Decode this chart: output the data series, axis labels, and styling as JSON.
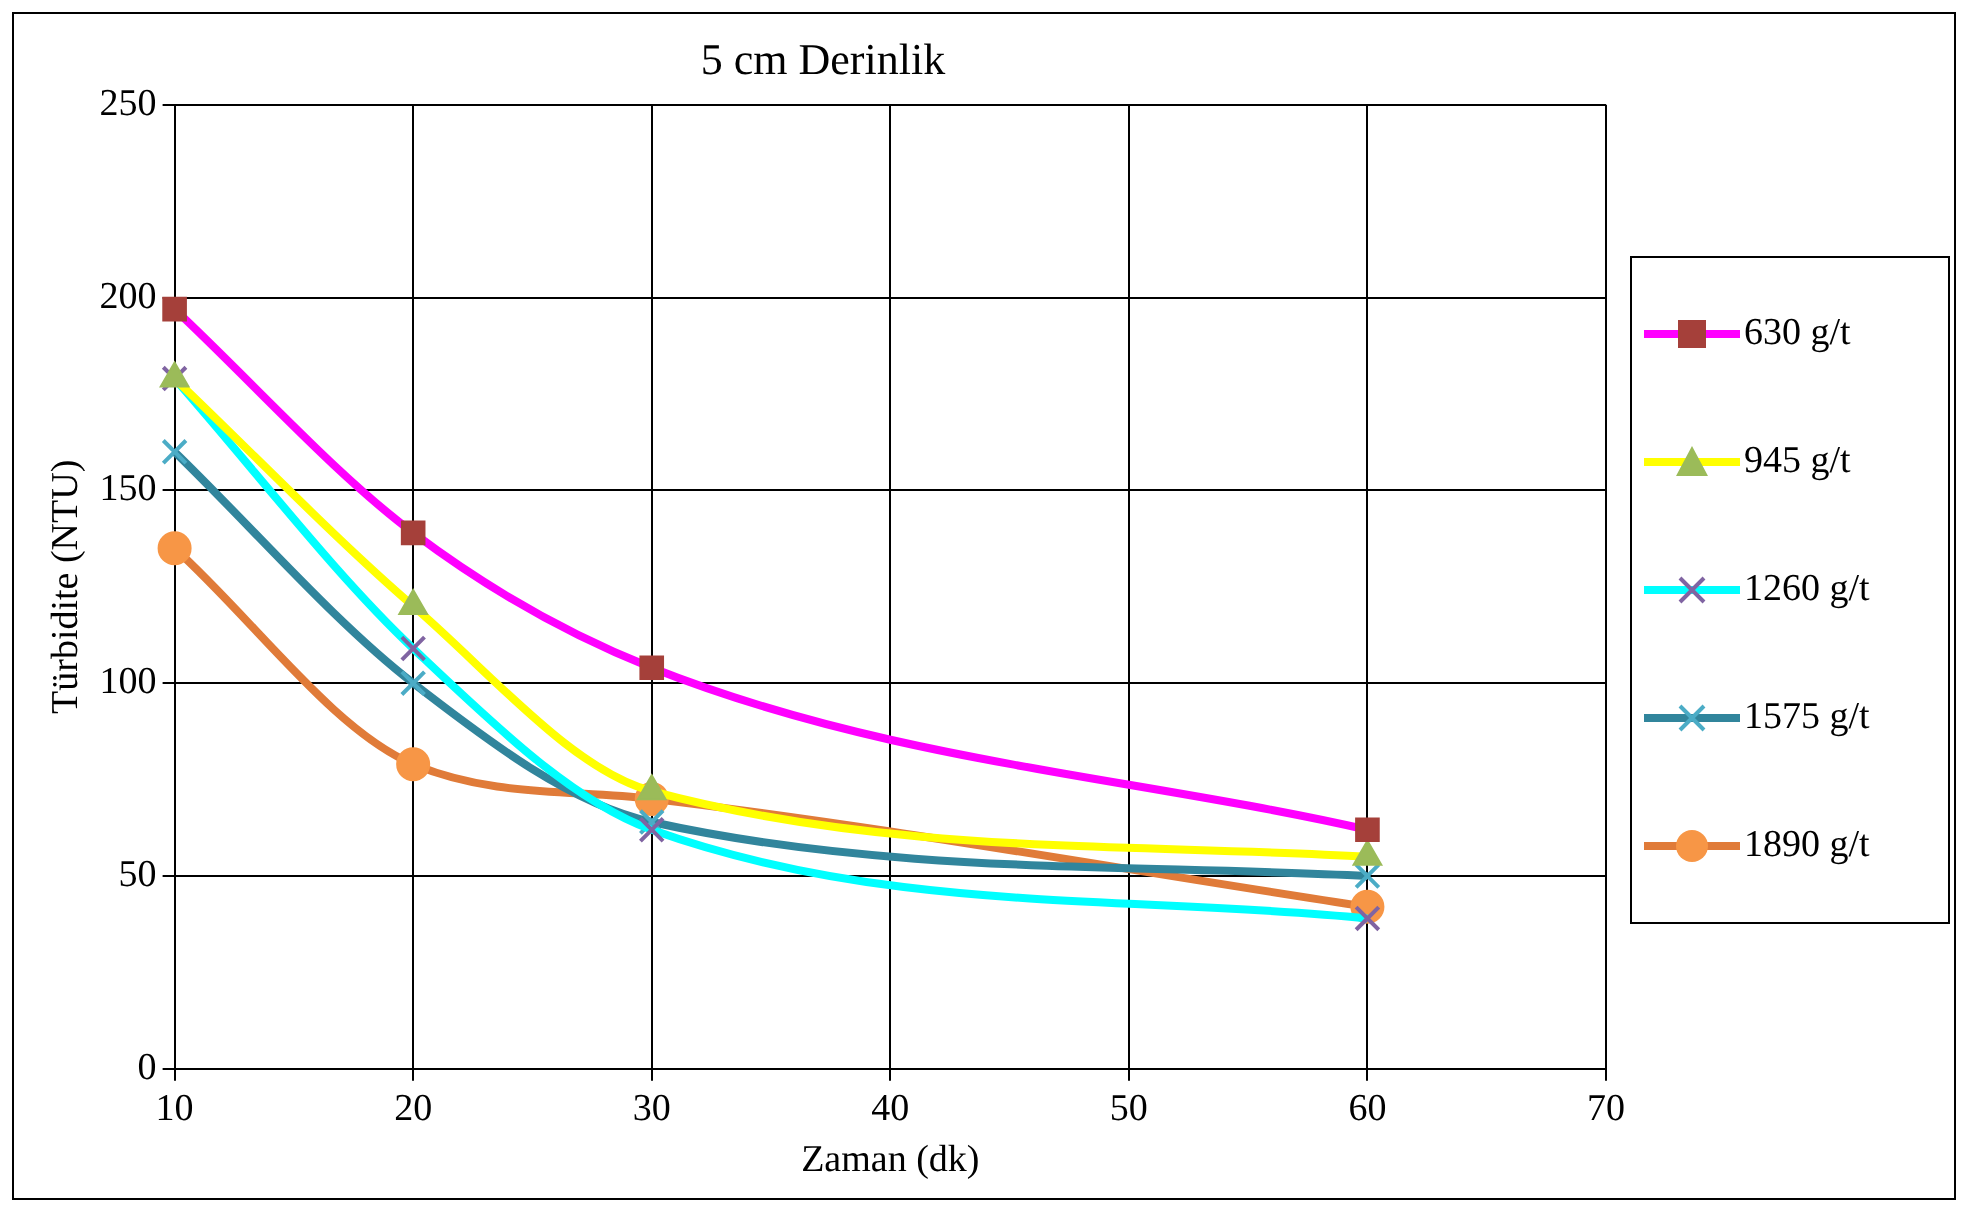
{
  "chart_data": {
    "type": "line",
    "title": "5 cm Derinlik",
    "xlabel": "Zaman (dk)",
    "ylabel": "Türbidite (NTU)",
    "x": [
      10,
      20,
      30,
      60
    ],
    "xlim": [
      10,
      70
    ],
    "xticks": [
      10,
      20,
      30,
      40,
      50,
      60,
      70
    ],
    "ylim": [
      0,
      250
    ],
    "yticks": [
      0,
      50,
      100,
      150,
      200,
      250
    ],
    "grid": true,
    "legend": "right",
    "line_style": "solid",
    "series": [
      {
        "name": "630 g/t",
        "color": "#ff00ff",
        "colors": [
          "#a5403a",
          "#a5403a",
          "#a5403a",
          "#a5403a"
        ],
        "marker": "square",
        "values": [
          197,
          139,
          104,
          62
        ]
      },
      {
        "name": "945 g/t",
        "color": "#ffff00",
        "colors": [
          "#9bbb59",
          "#9bbb59",
          "#9bbb59",
          "#9bbb59"
        ],
        "marker": "triangle",
        "values": [
          179,
          120,
          72,
          55
        ]
      },
      {
        "name": "1260 g/t",
        "color": "#00ffff",
        "colors": [
          "#8064a2",
          "#8064a2",
          "#8064a2",
          "#8064a2"
        ],
        "marker": "cross",
        "values": [
          179,
          109,
          62,
          39
        ]
      },
      {
        "name": "1575 g/t",
        "color": "#31859c",
        "colors": [
          "#4bacc6",
          "#4bacc6",
          "#4bacc6",
          "#4bacc6"
        ],
        "marker": "cross",
        "values": [
          160,
          100,
          64,
          50
        ]
      },
      {
        "name": "1890 g/t",
        "color": "#e07b39",
        "colors": [
          "#f79646",
          "#f79646",
          "#f79646",
          "#f79646"
        ],
        "marker": "circle",
        "values": [
          135,
          79,
          70,
          42
        ]
      }
    ]
  }
}
